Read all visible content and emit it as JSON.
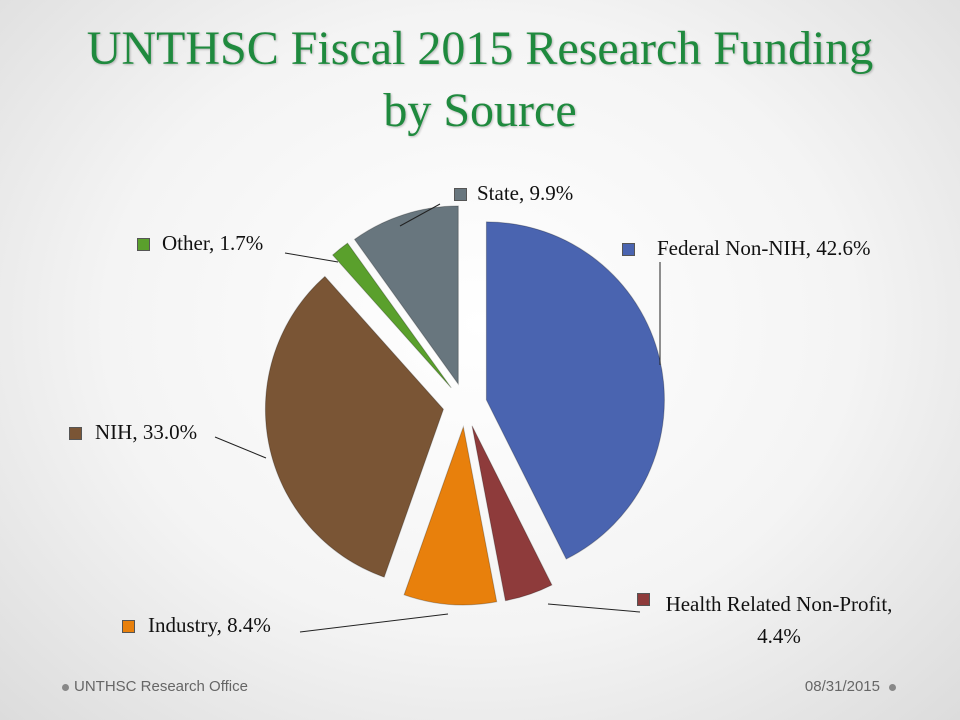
{
  "chart_data": {
    "type": "pie",
    "title": "UNTHSC Fiscal 2015 Research Funding by Source",
    "values": [
      42.6,
      4.4,
      8.4,
      33.0,
      1.7,
      9.9
    ],
    "value_labels": [
      "Federal Non-NIH, 42.6%",
      "Health Related Non-Profit, 4.4%",
      "Industry, 8.4%",
      "NIH, 33.0%",
      "Other, 1.7%",
      "State, 9.9%"
    ],
    "colors": [
      "#4a64b0",
      "#8e3b3b",
      "#e8800c",
      "#7a5535",
      "#5aa02c",
      "#68767e"
    ]
  },
  "footer": {
    "left": "UNTHSC Research Office",
    "right": "08/31/2015"
  }
}
